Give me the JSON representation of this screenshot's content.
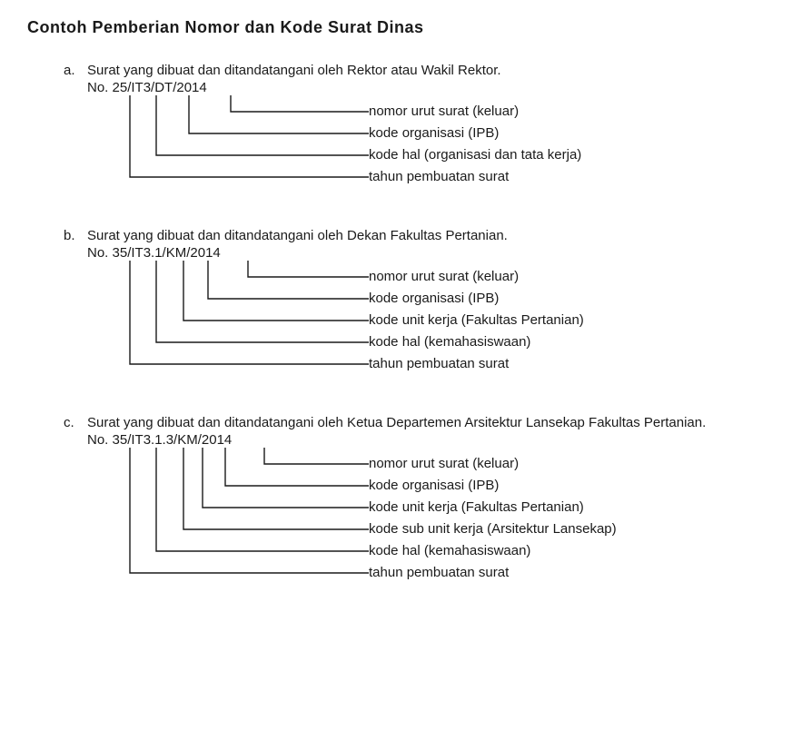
{
  "title": "Contoh Pemberian Nomor dan Kode Surat Dinas",
  "line_color": "#1a1a1a",
  "examples": [
    {
      "letter": "a.",
      "caption": "Surat yang dibuat dan ditandatangani oleh Rektor atau Wakil Rektor.",
      "number": "No. 25/IT3/DT/2014",
      "stems": [
        47,
        76,
        112,
        158
      ],
      "labels": [
        "nomor urut surat (keluar)",
        "kode organisasi (IPB)",
        "kode hal (organisasi dan tata kerja)",
        "tahun pembuatan surat"
      ]
    },
    {
      "letter": "b.",
      "caption": "Surat yang dibuat dan ditandatangani oleh Dekan Fakultas Pertanian.",
      "number": "No. 35/IT3.1/KM/2014",
      "stems": [
        47,
        76,
        106,
        133,
        177
      ],
      "labels": [
        "nomor urut surat (keluar)",
        "kode organisasi (IPB)",
        "kode unit kerja (Fakultas Pertanian)",
        "kode hal (kemahasiswaan)",
        "tahun pembuatan surat"
      ]
    },
    {
      "letter": "c.",
      "caption": "Surat yang dibuat dan ditandatangani oleh Ketua Departemen Arsitektur Lansekap Fakultas Pertanian.",
      "number": "No. 35/IT3.1.3/KM/2014",
      "stems": [
        47,
        76,
        106,
        127,
        152,
        195
      ],
      "labels": [
        "nomor urut surat (keluar)",
        "kode organisasi (IPB)",
        "kode unit kerja (Fakultas Pertanian)",
        "kode sub unit kerja (Arsitektur Lansekap)",
        "kode hal (kemahasiswaan)",
        "tahun pembuatan surat"
      ]
    }
  ]
}
